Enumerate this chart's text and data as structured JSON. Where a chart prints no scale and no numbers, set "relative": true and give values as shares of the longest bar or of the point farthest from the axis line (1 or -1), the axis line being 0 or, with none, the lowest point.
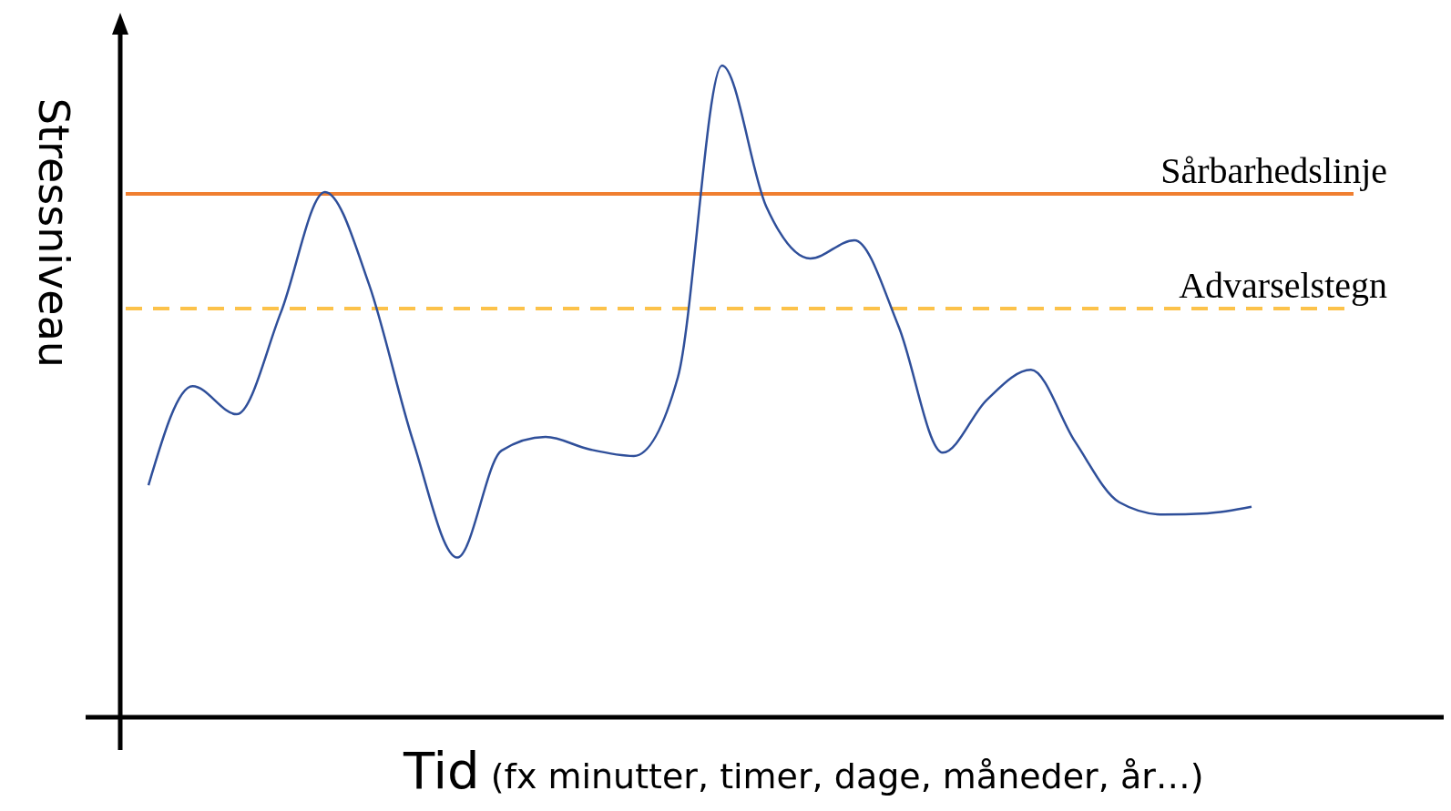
{
  "chart_data": {
    "type": "line",
    "relative": true,
    "ylabel": "Stressniveau",
    "xlabel": "Tid (fx minutter, timer, dage, måneder, år…)",
    "categories": [
      null,
      null,
      null,
      null,
      null,
      null,
      null,
      null,
      null,
      null,
      null,
      null,
      null,
      null,
      null,
      null,
      null,
      null,
      null,
      null,
      null,
      null,
      null,
      null,
      null,
      null
    ],
    "series": [
      {
        "color": "#2f4f9a",
        "values": [
          0.356,
          0.508,
          0.465,
          0.621,
          0.806,
          0.664,
          0.423,
          0.245,
          0.409,
          0.43,
          0.411,
          0.401,
          0.522,
          1,
          0.784,
          0.704,
          0.732,
          0.6,
          0.406,
          0.487,
          0.533,
          0.423,
          0.33,
          0.311,
          0.313,
          0.323
        ]
      }
    ],
    "ref_lines": [
      {
        "axis": "y",
        "value": 0.803,
        "label": "Sårbarhedslinje",
        "color": "#f07f30",
        "line_style": "solid"
      },
      {
        "axis": "y",
        "value": 0.627,
        "label": "Advarselstegn",
        "color": "#fcc24a",
        "line_style": "dashed"
      }
    ],
    "marker": "none",
    "line_style": "solid"
  }
}
